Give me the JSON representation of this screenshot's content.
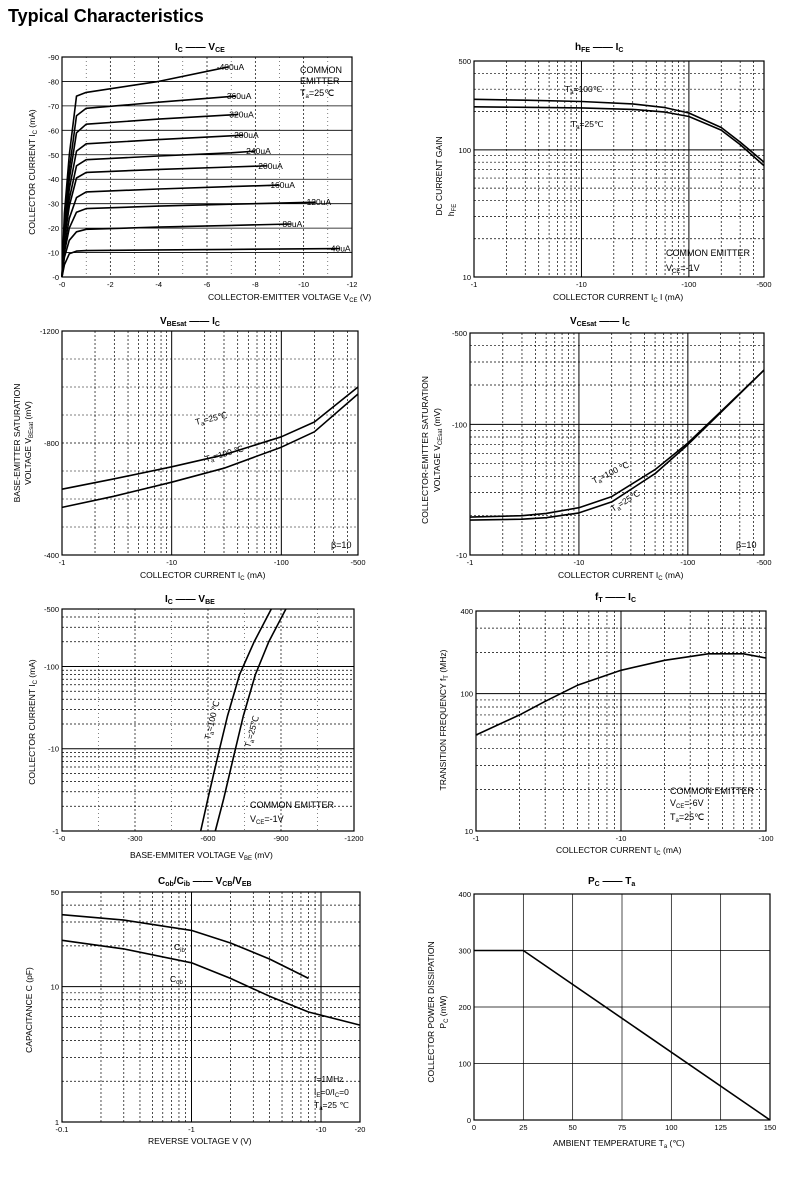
{
  "page_title": "Typical Characteristics",
  "chart_data": [
    {
      "id": "ic-vce",
      "type": "line",
      "title": "I_C — V_CE",
      "xlabel": "COLLECTOR-EMITTER VOLTAGE  V_CE (V)",
      "ylabel": "COLLECTOR CURRENT  I_C (mA)",
      "xlim": [
        0,
        -12
      ],
      "ylim": [
        0,
        -90
      ],
      "xscale": "linear",
      "yscale": "linear",
      "xticks": [
        0,
        -2,
        -4,
        -6,
        -8,
        -10,
        -12
      ],
      "xticklabels": [
        "-0",
        "-2",
        "-4",
        "-6",
        "-8",
        "-10",
        "-12"
      ],
      "yticks": [
        0,
        -10,
        -20,
        -30,
        -40,
        -50,
        -60,
        -70,
        -80,
        -90
      ],
      "yticklabels": [
        "-0",
        "-10",
        "-20",
        "-30",
        "-40",
        "-50",
        "-60",
        "-70",
        "-80",
        "-90"
      ],
      "notes": [
        "COMMON",
        "EMITTER",
        "T_a=25℃"
      ],
      "series": [
        {
          "name": "-40uA",
          "x": [
            0,
            -0.1,
            -0.3,
            -0.6,
            -1,
            -4,
            -7,
            -11.5
          ],
          "y": [
            0,
            -5,
            -9.5,
            -10.6,
            -10.8,
            -11.1,
            -11.3,
            -11.6
          ]
        },
        {
          "name": "-80uA",
          "x": [
            0,
            -0.1,
            -0.3,
            -0.6,
            -1,
            -4,
            -7,
            -9.5
          ],
          "y": [
            0,
            -8,
            -15,
            -18.5,
            -19.5,
            -20.4,
            -21.1,
            -21.7
          ]
        },
        {
          "name": "-120uA",
          "x": [
            0,
            -0.1,
            -0.3,
            -0.6,
            -1,
            -4,
            -7,
            -10.5
          ],
          "y": [
            0,
            -10,
            -20,
            -26.5,
            -28,
            -29,
            -29.8,
            -30.6
          ]
        },
        {
          "name": "-160uA",
          "x": [
            0,
            -0.1,
            -0.3,
            -0.6,
            -1,
            -4,
            -7,
            -9
          ],
          "y": [
            0,
            -12,
            -24,
            -32.5,
            -34.8,
            -36,
            -37,
            -37.6
          ]
        },
        {
          "name": "-200uA",
          "x": [
            0,
            -0.1,
            -0.3,
            -0.6,
            -1,
            -4,
            -7,
            -8.5
          ],
          "y": [
            0,
            -15,
            -29,
            -40.5,
            -42.8,
            -44,
            -45,
            -45.5
          ]
        },
        {
          "name": "-240uA",
          "x": [
            0,
            -0.1,
            -0.3,
            -0.6,
            -1,
            -4,
            -7,
            -8
          ],
          "y": [
            0,
            -17,
            -32,
            -45.5,
            -48,
            -49.5,
            -50.8,
            -51.5
          ]
        },
        {
          "name": "-280uA",
          "x": [
            0,
            -0.1,
            -0.3,
            -0.6,
            -1,
            -4,
            -7.5
          ],
          "y": [
            0,
            -19,
            -36,
            -51.5,
            -54.5,
            -56.2,
            -58
          ]
        },
        {
          "name": "-320uA",
          "x": [
            0,
            -0.1,
            -0.3,
            -0.6,
            -1,
            -4,
            -7.3
          ],
          "y": [
            0,
            -21,
            -40,
            -59,
            -62.5,
            -64.6,
            -66.5
          ]
        },
        {
          "name": "-360uA",
          "x": [
            0,
            -0.1,
            -0.3,
            -0.6,
            -1,
            -4,
            -7.2
          ],
          "y": [
            0,
            -23,
            -44,
            -66,
            -69,
            -71.5,
            -74
          ]
        },
        {
          "name": "-400uA",
          "x": [
            0,
            -0.1,
            -0.3,
            -0.6,
            -1,
            -4,
            -6.9
          ],
          "y": [
            0,
            -26,
            -50,
            -74,
            -75.5,
            -80,
            -86
          ]
        }
      ]
    },
    {
      "id": "hfe-ic",
      "type": "line",
      "title": "h_FE — I_C",
      "xlabel": "COLLECTOR CURRENT  I_C (mA)",
      "ylabel": "DC CURRENT GAIN  h_FE",
      "xlim": [
        -1,
        -500
      ],
      "ylim": [
        10,
        500
      ],
      "xscale": "log",
      "yscale": "log",
      "xticks": [
        -1,
        -10,
        -100,
        -500
      ],
      "xticklabels": [
        "-1",
        "-10",
        "-100",
        "-500"
      ],
      "yticks": [
        10,
        100,
        500
      ],
      "yticklabels": [
        "10",
        "100",
        "500"
      ],
      "notes": [
        "COMMON EMITTER",
        "V_CE=-1V"
      ],
      "series": [
        {
          "name": "T_a=100℃",
          "x": [
            -1,
            -3,
            -10,
            -30,
            -60,
            -100,
            -200,
            -300,
            -500
          ],
          "y": [
            250,
            246,
            240,
            230,
            215,
            195,
            150,
            115,
            80
          ]
        },
        {
          "name": "T_a=25℃",
          "x": [
            -1,
            -3,
            -10,
            -30,
            -60,
            -100,
            -200,
            -300,
            -500
          ],
          "y": [
            218,
            216,
            214,
            208,
            198,
            183,
            143,
            110,
            75
          ]
        }
      ]
    },
    {
      "id": "vbesat-ic",
      "type": "line",
      "title": "V_BEsat — I_C",
      "xlabel": "COLLECTOR CURRENT  I_C (mA)",
      "ylabel": "BASE-EMITTER SATURATION VOLTAGE  V_BEsat (mV)",
      "xlim": [
        -1,
        -500
      ],
      "ylim": [
        -400,
        -1200
      ],
      "xscale": "log",
      "yscale": "linear",
      "xticks": [
        -1,
        -10,
        -100,
        -500
      ],
      "xticklabels": [
        "-1",
        "-10",
        "-100",
        "-500"
      ],
      "yticks": [
        -400,
        -800,
        -1200
      ],
      "yticklabels": [
        "-400",
        "-800",
        "-1200"
      ],
      "notes": [
        "β=10"
      ],
      "series": [
        {
          "name": "T_a=25℃",
          "x": [
            -1,
            -3,
            -10,
            -30,
            -100,
            -200,
            -500
          ],
          "y": [
            -635,
            -672,
            -715,
            -758,
            -822,
            -875,
            -1000
          ]
        },
        {
          "name": "T_a=100℃",
          "x": [
            -1,
            -3,
            -10,
            -30,
            -100,
            -200,
            -500
          ],
          "y": [
            -570,
            -610,
            -660,
            -710,
            -785,
            -840,
            -975
          ]
        }
      ]
    },
    {
      "id": "vcesat-ic",
      "type": "line",
      "title": "V_CEsat — I_C",
      "xlabel": "COLLECTOR CURRENT  I_C (mA)",
      "ylabel": "COLLECTOR-EMITTER SATURATION VOLTAGE  V_CEsat (mV)",
      "xlim": [
        -1,
        -500
      ],
      "ylim": [
        -10,
        -500
      ],
      "xscale": "log",
      "yscale": "log",
      "xticks": [
        -1,
        -10,
        -100,
        -500
      ],
      "xticklabels": [
        "-1",
        "-10",
        "-100",
        "-500"
      ],
      "yticks": [
        -10,
        -100,
        -500
      ],
      "yticklabels": [
        "-10",
        "-100",
        "-500"
      ],
      "notes": [
        "β=10"
      ],
      "series": [
        {
          "name": "T_a=100℃",
          "x": [
            -1,
            -3,
            -5,
            -10,
            -20,
            -50,
            -100,
            -200,
            -500
          ],
          "y": [
            -19.5,
            -20,
            -20.8,
            -23,
            -28,
            -45,
            -72,
            -125,
            -260
          ]
        },
        {
          "name": "T_a=25℃",
          "x": [
            -1,
            -3,
            -5,
            -10,
            -20,
            -50,
            -100,
            -200,
            -500
          ],
          "y": [
            -18.5,
            -18.8,
            -19.3,
            -21,
            -25.5,
            -42,
            -70,
            -123,
            -260
          ]
        }
      ]
    },
    {
      "id": "ic-vbe",
      "type": "line",
      "title": "I_C — V_BE",
      "xlabel": "BASE-EMMITER VOLTAGE  V_BE (mV)",
      "ylabel": "COLLECTOR CURRENT  I_C (mA)",
      "xlim": [
        0,
        -1200
      ],
      "ylim": [
        -1,
        -500
      ],
      "xscale": "linear",
      "yscale": "log",
      "xticks": [
        0,
        -300,
        -600,
        -900,
        -1200
      ],
      "xticklabels": [
        "-0",
        "-300",
        "-600",
        "-900",
        "-1200"
      ],
      "yticks": [
        -1,
        -10,
        -100,
        -500
      ],
      "yticklabels": [
        "-1",
        "-10",
        "-100",
        "-500"
      ],
      "notes": [
        "COMMON EMITTER",
        "V_CE=-1V"
      ],
      "series": [
        {
          "name": "T_a=100℃",
          "x": [
            -570,
            -600,
            -640,
            -680,
            -730,
            -790,
            -860
          ],
          "y": [
            -1,
            -2.5,
            -8,
            -25,
            -80,
            -200,
            -500
          ]
        },
        {
          "name": "T_a=25℃",
          "x": [
            -630,
            -665,
            -705,
            -745,
            -795,
            -850,
            -920
          ],
          "y": [
            -1,
            -2.5,
            -8,
            -25,
            -80,
            -200,
            -500
          ]
        }
      ]
    },
    {
      "id": "ft-ic",
      "type": "line",
      "title": "f_T — I_C",
      "xlabel": "COLLECTOR CURRENT  I_C (mA)",
      "ylabel": "TRANSITION FREQUENCY  f_T (MHz)",
      "xlim": [
        -1,
        -100
      ],
      "ylim": [
        10,
        400
      ],
      "xscale": "log",
      "yscale": "log",
      "xticks": [
        -1,
        -10,
        -100
      ],
      "xticklabels": [
        "-1",
        "-10",
        "-100"
      ],
      "yticks": [
        10,
        100,
        400
      ],
      "yticklabels": [
        "10",
        "100",
        "400"
      ],
      "notes": [
        "COMMON EMITTER",
        "V_CE=-6V",
        "T_a=25℃"
      ],
      "series": [
        {
          "name": "",
          "x": [
            -1,
            -2,
            -3,
            -5,
            -10,
            -20,
            -40,
            -70,
            -100
          ],
          "y": [
            50,
            70,
            88,
            115,
            148,
            175,
            195,
            195,
            182
          ]
        }
      ]
    },
    {
      "id": "cob-vcb",
      "type": "line",
      "title": "C_ob/C_ib — V_CB/V_EB",
      "xlabel": "REVERSE VOLTAGE  V (V)",
      "ylabel": "CAPACITANCE  C (pF)",
      "xlim": [
        -0.1,
        -20
      ],
      "ylim": [
        1,
        50
      ],
      "xscale": "log",
      "yscale": "log",
      "xticks": [
        -0.1,
        -1,
        -10,
        -20
      ],
      "xticklabels": [
        "-0.1",
        "-1",
        "-10",
        "-20"
      ],
      "yticks": [
        1,
        10,
        50
      ],
      "yticklabels": [
        "1",
        "10",
        "50"
      ],
      "notes": [
        "f=1MHz",
        "I_E=0/I_C=0",
        "T_a=25 ℃"
      ],
      "series": [
        {
          "name": "C_ib",
          "x": [
            -0.1,
            -0.3,
            -1,
            -2,
            -4,
            -8
          ],
          "y": [
            34,
            31,
            26,
            21,
            16,
            11.5
          ]
        },
        {
          "name": "C_ob",
          "x": [
            -0.1,
            -0.3,
            -1,
            -2,
            -4,
            -8,
            -20
          ],
          "y": [
            22,
            19,
            15,
            11.5,
            8.5,
            6.5,
            5.2
          ]
        }
      ]
    },
    {
      "id": "pc-ta",
      "type": "line",
      "title": "P_C — T_a",
      "xlabel": "AMBIENT TEMPERATURE  T_a (℃)",
      "ylabel": "COLLECTOR POWER DISSIPATION  P_C (mW)",
      "xlim": [
        0,
        150
      ],
      "ylim": [
        0,
        400
      ],
      "xscale": "linear",
      "yscale": "linear",
      "xticks": [
        0,
        25,
        50,
        75,
        100,
        125,
        150
      ],
      "xticklabels": [
        "0",
        "25",
        "50",
        "75",
        "100",
        "125",
        "150"
      ],
      "yticks": [
        0,
        100,
        200,
        300,
        400
      ],
      "yticklabels": [
        "0",
        "100",
        "200",
        "300",
        "400"
      ],
      "notes": [],
      "series": [
        {
          "name": "",
          "x": [
            0,
            25,
            150
          ],
          "y": [
            300,
            300,
            0
          ]
        }
      ]
    }
  ]
}
